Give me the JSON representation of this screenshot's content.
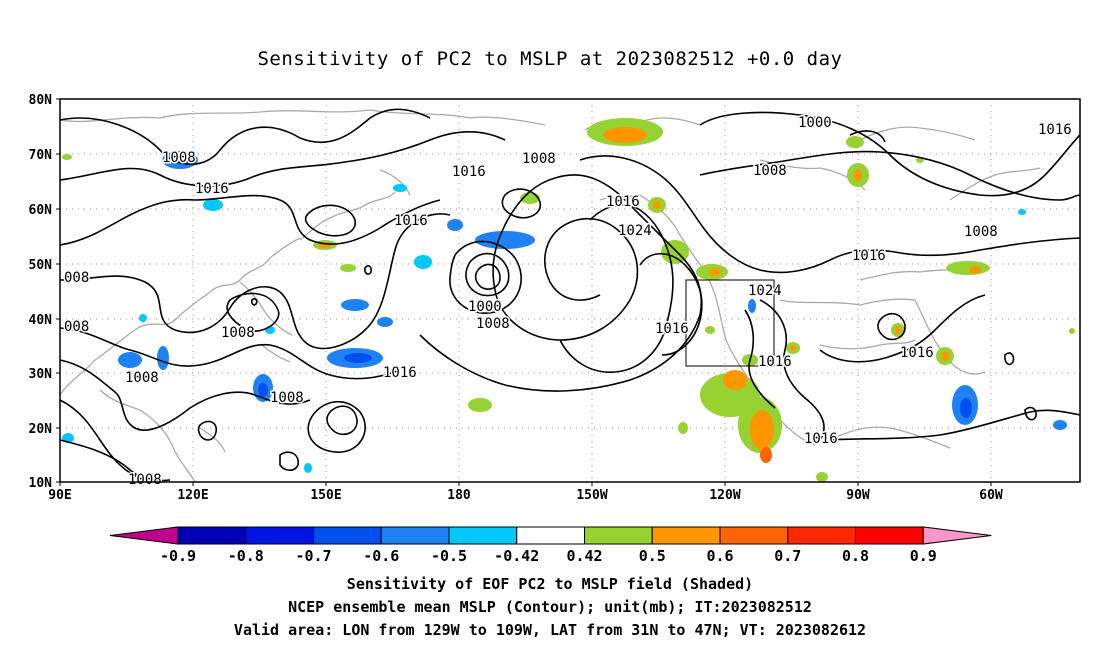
{
  "title": "Sensitivity of PC2 to MSLP at 2023082512 +0.0 day",
  "lat_labels": [
    "80N",
    "70N",
    "60N",
    "50N",
    "40N",
    "30N",
    "20N",
    "10N"
  ],
  "lon_labels": [
    "90E",
    "120E",
    "150E",
    "180",
    "150W",
    "120W",
    "90W",
    "60W"
  ],
  "colorbar": {
    "labels": [
      "-0.9",
      "-0.8",
      "-0.7",
      "-0.6",
      "-0.5",
      "-0.42",
      "0.42",
      "0.5",
      "0.6",
      "0.7",
      "0.8",
      "0.9"
    ],
    "colors": [
      "#c0008c",
      "#0000b4",
      "#0014e6",
      "#0050f0",
      "#1e82f5",
      "#00c8f8",
      "#ffffff",
      "#96d232",
      "#ff9600",
      "#ff6400",
      "#ff2800",
      "#ff0000",
      "#ff96c8"
    ]
  },
  "contour_labels": [
    "1008",
    "1016",
    "1008",
    "1016",
    "1016",
    "1008",
    "1016",
    "1024",
    "1000",
    "1008",
    "1016",
    "1008",
    "008",
    "008",
    "1008",
    "1008",
    "1016",
    "1008",
    "1000",
    "1008",
    "1016",
    "1024",
    "1016",
    "1016",
    "1016",
    "1016",
    "1008",
    "1016"
  ],
  "captions": [
    "Sensitivity of EOF PC2 to MSLP field (Shaded)",
    "NCEP ensemble mean MSLP (Contour); unit(mb); IT:2023082512",
    "Valid area: LON from 129W to 109W, LAT from 31N to 47N; VT: 2023082612"
  ],
  "colors": {
    "coast": "#aaaaaa",
    "grid": "#999999",
    "contour": "#000000"
  }
}
